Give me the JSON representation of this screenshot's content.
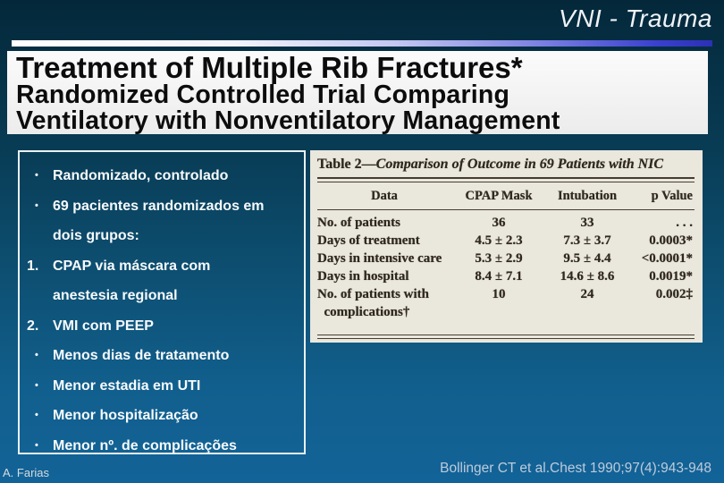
{
  "slide": {
    "title": "VNI - Trauma"
  },
  "paper_title": {
    "line1": "Treatment of Multiple Rib Fractures*",
    "line2": "Randomized Controlled Trial Comparing",
    "line3": "Ventilatory with Nonventilatory Management"
  },
  "list": {
    "items": [
      {
        "marker": "•",
        "text": "Randomizado, controlado"
      },
      {
        "marker": "•",
        "text": "69 pacientes randomizados em\ndois grupos:"
      },
      {
        "marker": "1.",
        "text": "CPAP via máscara com\nanestesia regional"
      },
      {
        "marker": "2.",
        "text": "VMI com PEEP"
      },
      {
        "marker": "•",
        "text": "Menos dias de tratamento"
      },
      {
        "marker": "•",
        "text": "Menor estadia em UTI"
      },
      {
        "marker": "•",
        "text": "Menor hospitalização"
      },
      {
        "marker": "•",
        "text": "Menor nº. de complicações"
      }
    ]
  },
  "paper_table": {
    "title_prefix": "Table 2—",
    "title_rest": "Comparison of Outcome in 69 Patients with NIC",
    "headers": [
      "Data",
      "CPAP Mask",
      "Intubation",
      "p Value"
    ],
    "rows": [
      {
        "label": "No. of patients",
        "cpap": "36",
        "intubation": "33",
        "p": ". . ."
      },
      {
        "label": "Days of treatment",
        "cpap": "4.5 ± 2.3",
        "intubation": "7.3 ± 3.7",
        "p": "0.0003*"
      },
      {
        "label": "Days in intensive care",
        "cpap": "5.3 ± 2.9",
        "intubation": "9.5 ± 4.4",
        "p": "<0.0001*"
      },
      {
        "label": "Days in hospital",
        "cpap": "8.4 ± 7.1",
        "intubation": "14.6 ± 8.6",
        "p": "0.0019*"
      },
      {
        "label": "No. of patients with\n  complications†",
        "cpap": "10",
        "intubation": "24",
        "p": "0.002‡"
      }
    ]
  },
  "footer": {
    "author": "A. Farias",
    "citation": "Bollinger CT et al.Chest 1990;97(4):943-948"
  },
  "colors": {
    "background_top": "#04283a",
    "background_bottom": "#126398",
    "divider_gradient_start": "#ffffff",
    "divider_gradient_end": "#3338c8",
    "paper_background": "#f5f5f5",
    "table_background": "#eae7dd",
    "table_text": "#2f281f",
    "list_text": "#f7fafc",
    "citation_text": "#becbdb"
  }
}
